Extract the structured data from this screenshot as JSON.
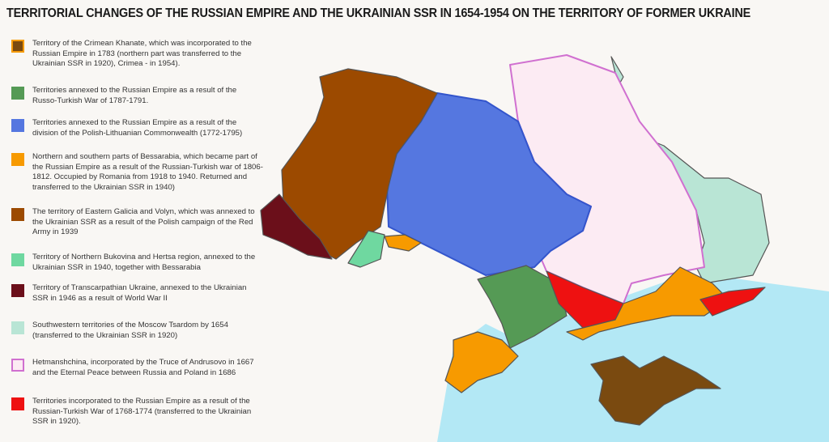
{
  "title": "TERRITORIAL CHANGES OF THE RUSSIAN EMPIRE AND THE UKRAINIAN SSR IN 1654-1954 ON THE TERRITORY OF FORMER UKRAINE",
  "legend": [
    {
      "text": "Territory of the Crimean Khanate, which was incorporated to the Russian Empire in 1783 (northern part was transferred to the Ukrainian SSR in 1920), Crimea - in 1954).",
      "fill": "#7a4a10",
      "border": "#f59a00"
    },
    {
      "text": "Territories annexed to the Russian Empire as a result of the Russo-Turkish War of 1787-1791.",
      "fill": "#559a55",
      "border": "#559a55"
    },
    {
      "text": "Territories annexed to the Russian Empire as a result of the division of the Polish-Lithuanian Commonwealth (1772-1795)",
      "fill": "#5577e0",
      "border": "#5577e0"
    },
    {
      "text": "Northern and southern parts of Bessarabia, which became part of the Russian Empire as a result of the Russian-Turkish war of 1806-1812. Occupied by Romania from 1918 to 1940. Returned and transferred to the Ukrainian SSR in 1940)",
      "fill": "#f79a00",
      "border": "#f79a00"
    },
    {
      "text": "The territory of Eastern Galicia and Volyn, which was annexed to the Ukrainian SSR as a result of the Polish campaign of the Red Army in 1939",
      "fill": "#9c4a00",
      "border": "#9c4a00"
    },
    {
      "text": "Territory of Northern Bukovina and Hertsa region, annexed to the Ukrainian SSR in 1940, together with Bessarabia",
      "fill": "#6fd8a0",
      "border": "#6fd8a0"
    },
    {
      "text": "Territory of Transcarpathian Ukraine, annexed to the Ukrainian SSR in 1946 as a result of World War II",
      "fill": "#6b0f1a",
      "border": "#6b0f1a"
    },
    {
      "text": "Southwestern territories of the Moscow Tsardom by 1654 (transferred to the Ukrainian SSR in 1920)",
      "fill": "#b9e5d5",
      "border": "#b9e5d5"
    },
    {
      "text": "Hetmanshchina, incorporated by the Truce of Andrusovo in 1667 and the Eternal Peace between Russia and Poland in 1686",
      "fill": "#fcebf3",
      "border": "#d070d0"
    },
    {
      "text": "Territories incorporated to the Russian Empire as a result of the Russian-Turkish War of 1768-1774 (transferred to the Ukrainian SSR in 1920).",
      "fill": "#ee1111",
      "border": "#ee1111"
    }
  ],
  "colors": {
    "sea": "#b3e8f5",
    "background": "#f9f7f4"
  }
}
